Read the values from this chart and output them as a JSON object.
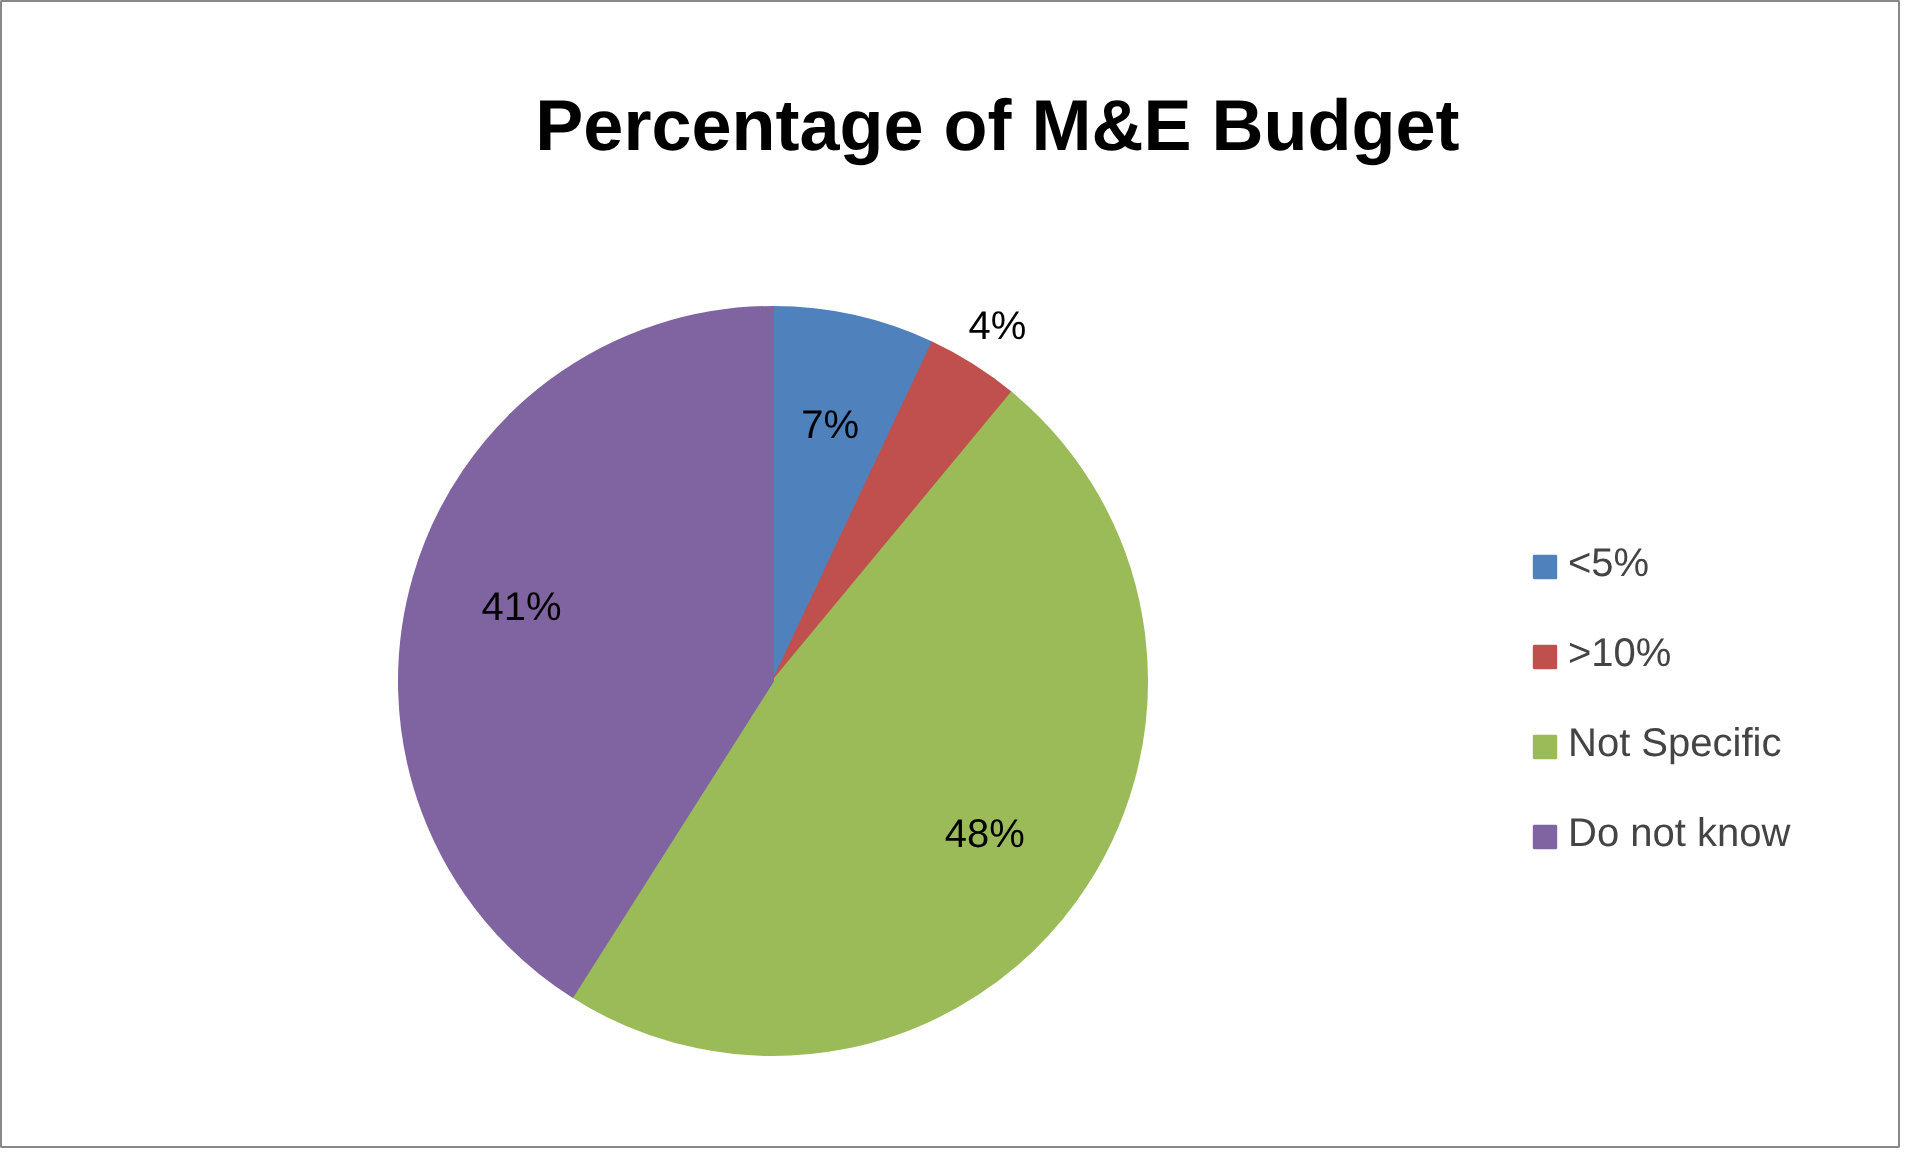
{
  "chart_data": {
    "type": "pie",
    "title": "Percentage of M&E Budget",
    "categories": [
      "<5%",
      ">10%",
      "Not Specific",
      "Do not know"
    ],
    "values": [
      7,
      4,
      48,
      41
    ],
    "colors": [
      "#4f81bd",
      "#c0504d",
      "#9bbb59",
      "#8064a2"
    ],
    "value_labels": [
      "7%",
      "4%",
      "48%",
      "41%"
    ],
    "legend": "right"
  }
}
